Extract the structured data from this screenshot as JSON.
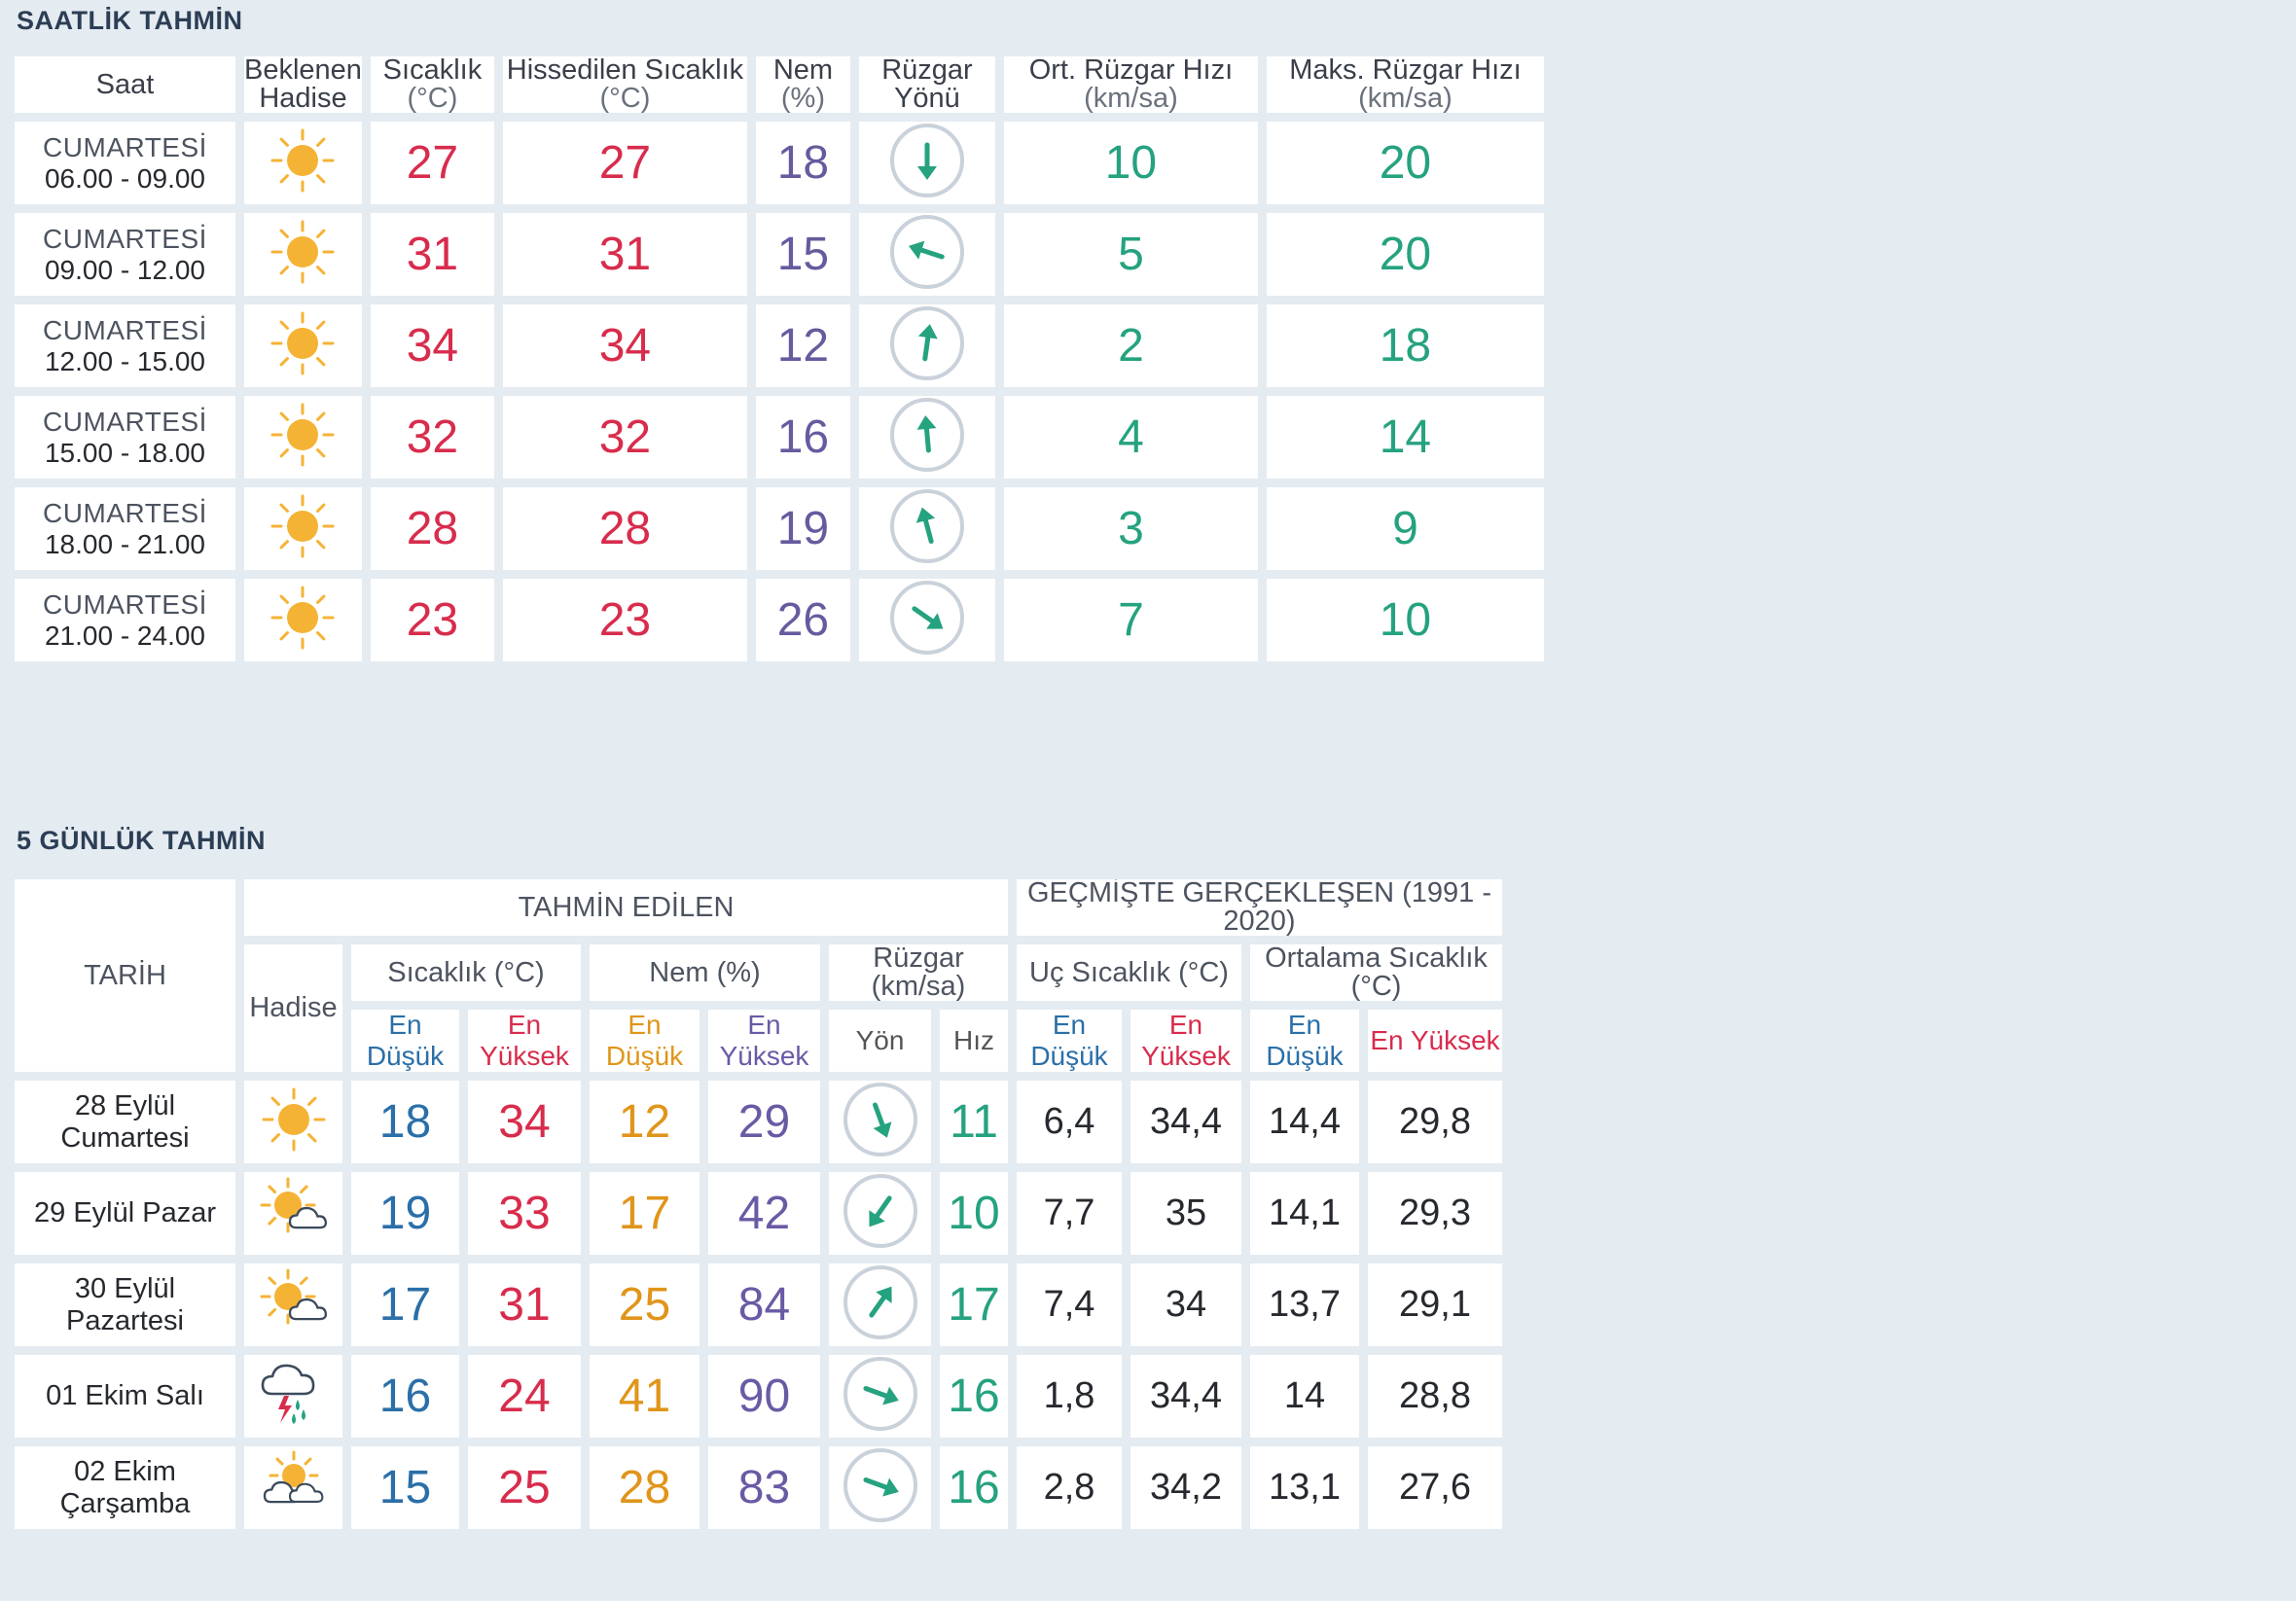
{
  "hourly": {
    "title": "SAATLİK TAHMİN",
    "headers": {
      "time": "Saat",
      "condition_line1": "Beklenen",
      "condition_line2": "Hadise",
      "temp": "Sıcaklık",
      "temp_unit": "(°C)",
      "feels": "Hissedilen Sıcaklık",
      "feels_unit": "(°C)",
      "humidity": "Nem",
      "humidity_unit": "(%)",
      "wind_dir": "Rüzgar Yönü",
      "wind_avg": "Ort. Rüzgar Hızı",
      "wind_avg_unit": "(km/sa)",
      "wind_max": "Maks. Rüzgar Hızı",
      "wind_max_unit": "(km/sa)"
    },
    "rows": [
      {
        "day": "CUMARTESİ",
        "time": "06.00 - 09.00",
        "icon": "sun-icon",
        "temp": "27",
        "feels": "27",
        "humidity": "18",
        "wind_deg": 180,
        "wind_avg": "10",
        "wind_max": "20"
      },
      {
        "day": "CUMARTESİ",
        "time": "09.00 - 12.00",
        "icon": "sun-icon",
        "temp": "31",
        "feels": "31",
        "humidity": "15",
        "wind_deg": 288,
        "wind_avg": "5",
        "wind_max": "20"
      },
      {
        "day": "CUMARTESİ",
        "time": "12.00 - 15.00",
        "icon": "sun-icon",
        "temp": "34",
        "feels": "34",
        "humidity": "12",
        "wind_deg": 8,
        "wind_avg": "2",
        "wind_max": "18"
      },
      {
        "day": "CUMARTESİ",
        "time": "15.00 - 18.00",
        "icon": "sun-icon",
        "temp": "32",
        "feels": "32",
        "humidity": "16",
        "wind_deg": 355,
        "wind_avg": "4",
        "wind_max": "14"
      },
      {
        "day": "CUMARTESİ",
        "time": "18.00 - 21.00",
        "icon": "sun-icon",
        "temp": "28",
        "feels": "28",
        "humidity": "19",
        "wind_deg": 345,
        "wind_avg": "3",
        "wind_max": "9"
      },
      {
        "day": "CUMARTESİ",
        "time": "21.00 - 24.00",
        "icon": "sun-icon",
        "temp": "23",
        "feels": "23",
        "humidity": "26",
        "wind_deg": 125,
        "wind_avg": "7",
        "wind_max": "10"
      }
    ]
  },
  "daily": {
    "title": "5 GÜNLÜK TAHMİN",
    "headers": {
      "date": "TARİH",
      "forecast": "TAHMİN EDİLEN",
      "history": "GEÇMİŞTE GERÇEKLEŞEN (1991 - 2020)",
      "condition": "Hadise",
      "temp": "Sıcaklık (°C)",
      "humidity": "Nem (%)",
      "wind": "Rüzgar (km/sa)",
      "extreme": "Uç Sıcaklık (°C)",
      "average": "Ortalama Sıcaklık (°C)",
      "min": "En Düşük",
      "max": "En Yüksek",
      "dir": "Yön",
      "speed": "Hız"
    },
    "rows": [
      {
        "date": "28 Eylül Cumartesi",
        "icon": "sun-icon",
        "tmin": "18",
        "tmax": "34",
        "hmin": "12",
        "hmax": "29",
        "wind_deg": 160,
        "wind_speed": "11",
        "xmin": "6,4",
        "xmax": "34,4",
        "amin": "14,4",
        "amax": "29,8"
      },
      {
        "date": "29 Eylül Pazar",
        "icon": "partly-cloudy-icon",
        "tmin": "19",
        "tmax": "33",
        "hmin": "17",
        "hmax": "42",
        "wind_deg": 215,
        "wind_speed": "10",
        "xmin": "7,7",
        "xmax": "35",
        "amin": "14,1",
        "amax": "29,3"
      },
      {
        "date": "30 Eylül Pazartesi",
        "icon": "partly-cloudy-icon",
        "tmin": "17",
        "tmax": "31",
        "hmin": "25",
        "hmax": "84",
        "wind_deg": 35,
        "wind_speed": "17",
        "xmin": "7,4",
        "xmax": "34",
        "amin": "13,7",
        "amax": "29,1"
      },
      {
        "date": "01 Ekim Salı",
        "icon": "thunderstorm-icon",
        "tmin": "16",
        "tmax": "24",
        "hmin": "41",
        "hmax": "90",
        "wind_deg": 110,
        "wind_speed": "16",
        "xmin": "1,8",
        "xmax": "34,4",
        "amin": "14",
        "amax": "28,8"
      },
      {
        "date": "02 Ekim Çarşamba",
        "icon": "sun-cloud-icon",
        "tmin": "15",
        "tmax": "25",
        "hmin": "28",
        "hmax": "83",
        "wind_deg": 110,
        "wind_speed": "16",
        "xmin": "2,8",
        "xmax": "34,2",
        "amin": "13,1",
        "amax": "27,6"
      }
    ]
  },
  "colors": {
    "temp": "#d82c4c",
    "humidity": "#665b9e",
    "wind": "#25a27f",
    "min": "#2a6fa8",
    "hmin": "#e0951a",
    "sun": "#f5b335"
  }
}
